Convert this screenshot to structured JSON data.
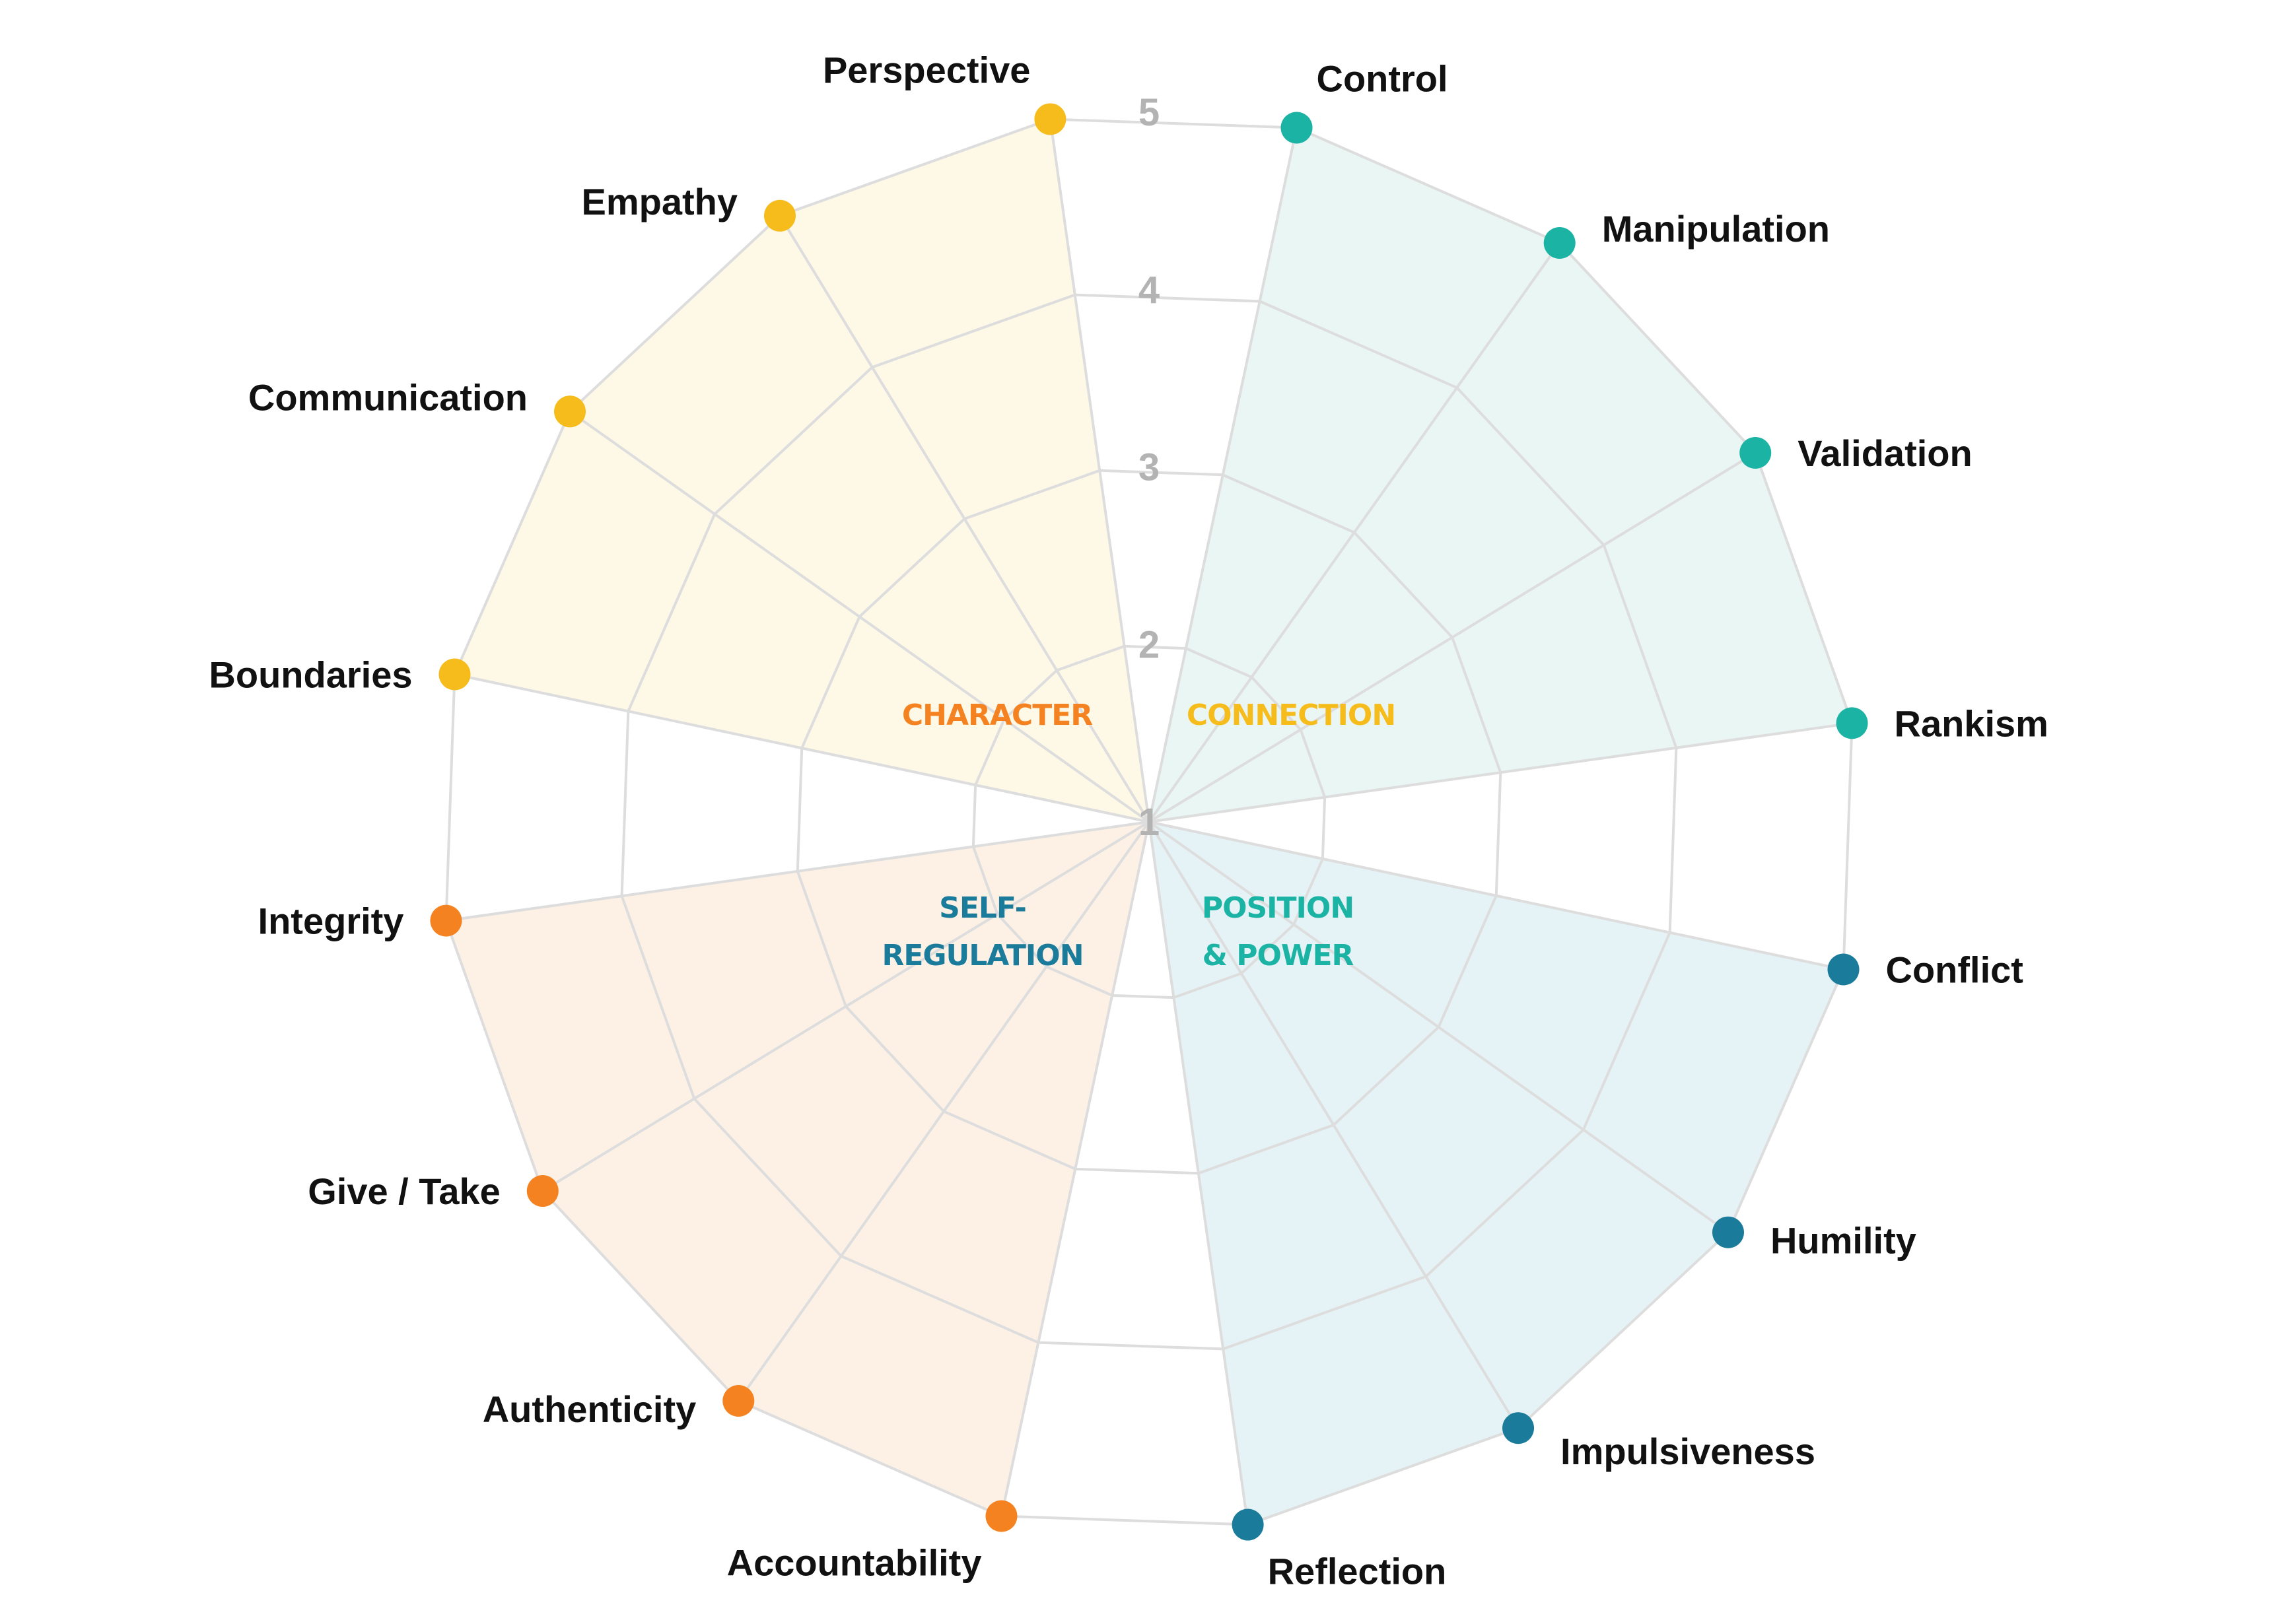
{
  "chart_data": {
    "type": "radar",
    "ticks": [
      "1",
      "2",
      "3",
      "4",
      "5"
    ],
    "rlim": [
      1,
      5
    ],
    "grid": true,
    "groups": [
      {
        "name": "CHARACTER",
        "label_lines": [
          "CHARACTER"
        ],
        "color": "#F58220",
        "fill": "#FDF1E6",
        "axes": [
          "Accountability",
          "Authenticity",
          "Give / Take",
          "Integrity"
        ],
        "values": [
          5,
          5,
          5,
          5
        ]
      },
      {
        "name": "CONNECTION",
        "label_lines": [
          "CONNECTION"
        ],
        "color": "#F5BC1C",
        "fill": "#FEF8E7",
        "axes": [
          "Boundaries",
          "Communication",
          "Empathy",
          "Perspective"
        ],
        "values": [
          5,
          5,
          5,
          5
        ]
      },
      {
        "name": "POSITION & POWER",
        "label_lines": [
          "POSITION",
          "& POWER"
        ],
        "color": "#1BB3A4",
        "fill": "#EAF6F4",
        "axes": [
          "Control",
          "Manipulation",
          "Validation",
          "Rankism"
        ],
        "values": [
          5,
          5,
          5,
          5
        ]
      },
      {
        "name": "SELF-REGULATION",
        "label_lines": [
          "SELF-",
          "REGULATION"
        ],
        "color": "#1A7B9B",
        "fill": "#E6F3F6",
        "axes": [
          "Conflict",
          "Humility",
          "Impulsiveness",
          "Reflection"
        ],
        "values": [
          5,
          5,
          5,
          5
        ]
      }
    ]
  }
}
